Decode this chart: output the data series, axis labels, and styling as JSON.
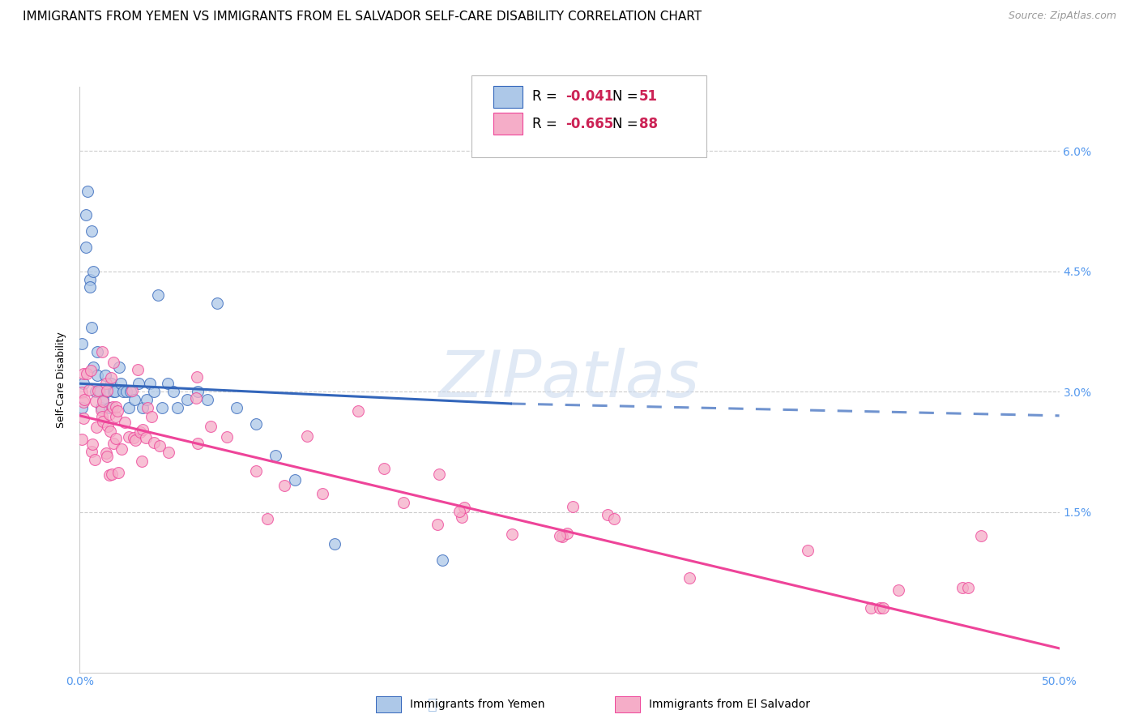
{
  "title": "IMMIGRANTS FROM YEMEN VS IMMIGRANTS FROM EL SALVADOR SELF-CARE DISABILITY CORRELATION CHART",
  "source": "Source: ZipAtlas.com",
  "ylabel": "Self-Care Disability",
  "yticks": [
    0.0,
    0.015,
    0.03,
    0.045,
    0.06
  ],
  "ytick_labels": [
    "",
    "1.5%",
    "3.0%",
    "4.5%",
    "6.0%"
  ],
  "xlim": [
    0.0,
    0.5
  ],
  "ylim": [
    -0.005,
    0.068
  ],
  "color_yemen": "#adc8e8",
  "color_el_salvador": "#f5adc8",
  "color_line_yemen": "#3366bb",
  "color_line_el_salvador": "#ee4499",
  "color_axis_labels": "#5599ee",
  "color_grid": "#cccccc",
  "watermark": "ZIPatlas",
  "title_fontsize": 11,
  "source_fontsize": 9,
  "axis_label_fontsize": 9,
  "tick_fontsize": 10,
  "legend_fontsize": 12,
  "scatter_size": 100,
  "scatter_alpha": 0.75,
  "scatter_linewidth": 0.8
}
